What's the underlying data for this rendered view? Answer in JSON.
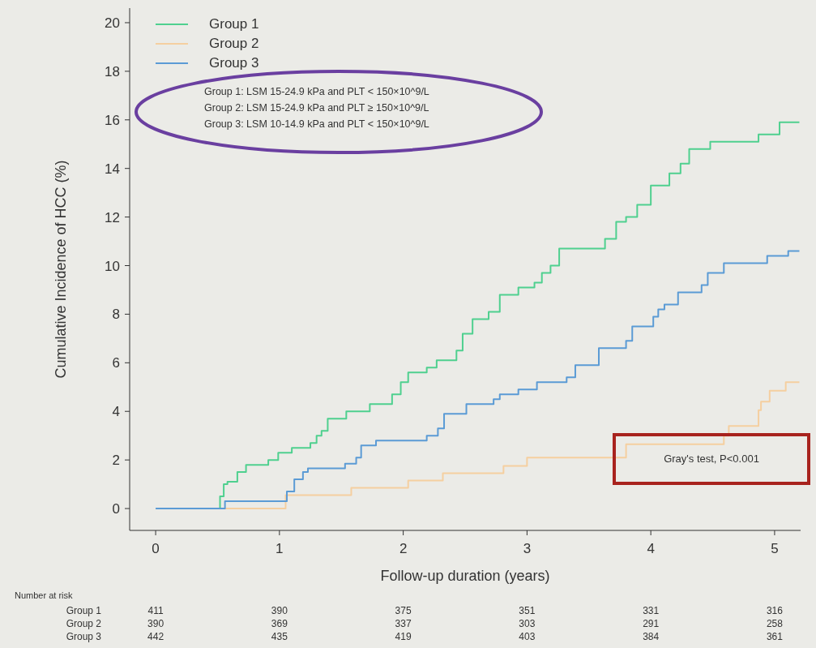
{
  "chart_data": {
    "type": "step",
    "xlabel": "Follow-up duration (years)",
    "ylabel": "Cumulative Incidence of HCC (%)",
    "xlim": [
      -0.21,
      5.21
    ],
    "xticks": [
      0,
      1,
      2,
      3,
      4,
      5
    ],
    "ylim": [
      -0.9,
      20.6
    ],
    "yticks": [
      0,
      2,
      4,
      6,
      8,
      10,
      12,
      14,
      16,
      18,
      20
    ],
    "grid": false,
    "legend": "top left",
    "series": [
      {
        "name": "Group 1",
        "color": "#4fd08f",
        "x": [
          0,
          0.49,
          0.52,
          0.55,
          0.58,
          0.66,
          0.73,
          0.91,
          0.99,
          1.1,
          1.25,
          1.3,
          1.34,
          1.39,
          1.54,
          1.73,
          1.91,
          1.98,
          2.04,
          2.19,
          2.27,
          2.43,
          2.48,
          2.56,
          2.69,
          2.78,
          2.93,
          3.06,
          3.12,
          3.19,
          3.26,
          3.63,
          3.72,
          3.8,
          3.89,
          4.0,
          4.15,
          4.24,
          4.31,
          4.48,
          4.87,
          5.04,
          5.2
        ],
        "values": [
          0,
          0,
          0.5,
          1.0,
          1.1,
          1.5,
          1.8,
          2.0,
          2.3,
          2.5,
          2.7,
          3.0,
          3.2,
          3.7,
          4.0,
          4.3,
          4.7,
          5.2,
          5.6,
          5.8,
          6.1,
          6.5,
          7.2,
          7.8,
          8.1,
          8.8,
          9.1,
          9.3,
          9.7,
          10.0,
          10.7,
          11.1,
          11.8,
          12.0,
          12.5,
          13.3,
          13.8,
          14.2,
          14.8,
          15.1,
          15.4,
          15.9,
          15.9
        ]
      },
      {
        "name": "Group 2",
        "color": "#f5cfa0",
        "x": [
          0,
          1.05,
          1.58,
          2.04,
          2.32,
          2.81,
          3.0,
          3.8,
          4.59,
          4.63,
          4.87,
          4.89,
          4.96,
          5.09,
          5.2
        ],
        "values": [
          0,
          0.55,
          0.85,
          1.15,
          1.45,
          1.75,
          2.1,
          2.65,
          3.0,
          3.4,
          4.05,
          4.4,
          4.85,
          5.2,
          5.2
        ]
      },
      {
        "name": "Group 3",
        "color": "#5b9bd5",
        "x": [
          0,
          0.56,
          1.03,
          1.06,
          1.12,
          1.19,
          1.23,
          1.53,
          1.62,
          1.66,
          1.78,
          2.19,
          2.28,
          2.33,
          2.51,
          2.73,
          2.78,
          2.93,
          3.08,
          3.32,
          3.39,
          3.58,
          3.8,
          3.85,
          4.02,
          4.06,
          4.11,
          4.22,
          4.41,
          4.46,
          4.59,
          4.94,
          5.11,
          5.2
        ],
        "values": [
          0,
          0.3,
          0.3,
          0.7,
          1.2,
          1.5,
          1.65,
          1.85,
          2.1,
          2.6,
          2.8,
          3.0,
          3.3,
          3.9,
          4.3,
          4.5,
          4.7,
          4.9,
          5.2,
          5.4,
          5.9,
          6.6,
          6.9,
          7.5,
          7.9,
          8.2,
          8.4,
          8.9,
          9.2,
          9.7,
          10.1,
          10.4,
          10.6,
          10.6
        ]
      }
    ],
    "annotations": [
      "Group 1: LSM 15-24.9 kPa and PLT < 150×10^9/L",
      "Group 2: LSM 15-24.9 kPa and PLT ≥ 150×10^9/L",
      "Group 3: LSM 10-14.9 kPa and PLT < 150×10^9/L",
      "Gray's test, P<0.001",
      "Number at risk",
      "Group 1\t411\t390\t375\t351\t331\t316",
      "Group 2\t390\t369\t337\t303\t291\t258",
      "Group 3\t442\t435\t419\t403\t384\t361"
    ]
  }
}
